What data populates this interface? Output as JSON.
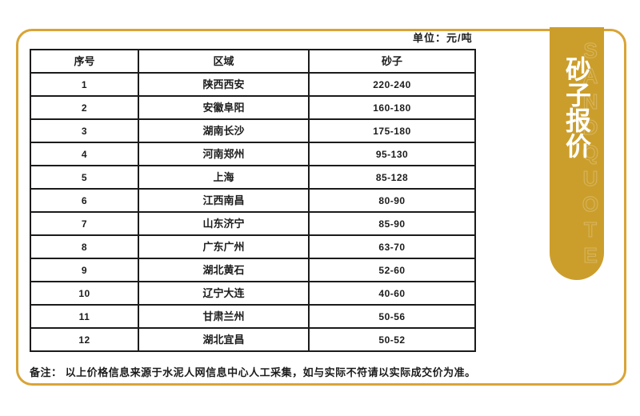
{
  "unit_label": "单位：元/吨",
  "note": "备注： 以上价格信息来源于水泥人网信息中心人工采集，如与实际不符请以实际成交价为准。",
  "banner": {
    "title": "砂子报价",
    "watermark": "SANDQUOTE"
  },
  "colors": {
    "gold_border": "#D9A436",
    "gold_banner": "#CB9E2C",
    "line_color": "#1b1b1b",
    "text_color": "#1c1c1c"
  },
  "chart_data": {
    "type": "table",
    "title": "砂子报价",
    "unit": "元/吨",
    "columns": [
      "序号",
      "区域",
      "砂子"
    ],
    "rows": [
      [
        "1",
        "陕西西安",
        "220-240"
      ],
      [
        "2",
        "安徽阜阳",
        "160-180"
      ],
      [
        "3",
        "湖南长沙",
        "175-180"
      ],
      [
        "4",
        "河南郑州",
        "95-130"
      ],
      [
        "5",
        "上海",
        "85-128"
      ],
      [
        "6",
        "江西南昌",
        "80-90"
      ],
      [
        "7",
        "山东济宁",
        "85-90"
      ],
      [
        "8",
        "广东广州",
        "63-70"
      ],
      [
        "9",
        "湖北黄石",
        "52-60"
      ],
      [
        "10",
        "辽宁大连",
        "40-60"
      ],
      [
        "11",
        "甘肃兰州",
        "50-56"
      ],
      [
        "12",
        "湖北宜昌",
        "50-52"
      ]
    ]
  }
}
